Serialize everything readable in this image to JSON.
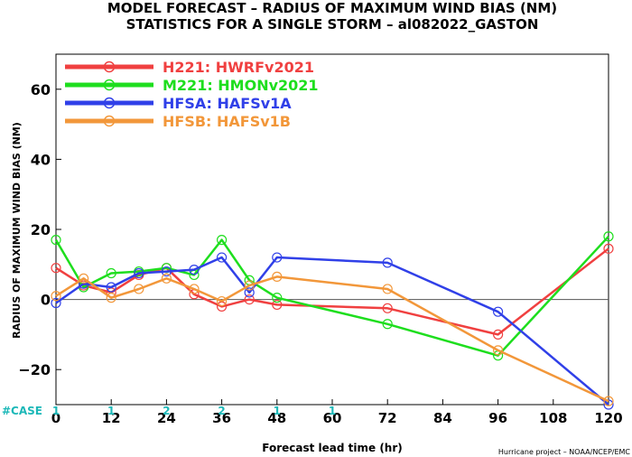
{
  "chart_data": {
    "type": "line",
    "title": "MODEL FORECAST – RADIUS OF MAXIMUM WIND BIAS (NM)",
    "subtitle": "STATISTICS FOR A SINGLE STORM – al082022_GASTON",
    "xlabel": "Forecast lead time (hr)",
    "ylabel": "RADIUS OF MAXIMUM WIND BIAS (NM)",
    "xlim": [
      0,
      120
    ],
    "ylim": [
      -30,
      70
    ],
    "x_ticks": [
      0,
      12,
      24,
      36,
      48,
      60,
      72,
      84,
      96,
      108,
      120
    ],
    "y_ticks": [
      -20,
      0,
      20,
      40,
      60
    ],
    "legend_position": "top-left",
    "grid": false,
    "zero_line": true,
    "case_label": "#CASE",
    "cases": [
      {
        "x": 0,
        "n": "1"
      },
      {
        "x": 12,
        "n": "1"
      },
      {
        "x": 24,
        "n": "2"
      },
      {
        "x": 36,
        "n": "2"
      },
      {
        "x": 48,
        "n": "1"
      },
      {
        "x": 60,
        "n": "1"
      }
    ],
    "credit": "Hurricane project – NOAA/NCEP/EMC",
    "series": [
      {
        "name": "H221: HWRFv2021",
        "color": "#f04040",
        "x": [
          0,
          6,
          12,
          18,
          24,
          30,
          36,
          42,
          48,
          72,
          96,
          120
        ],
        "y": [
          9,
          4,
          2,
          7,
          9,
          1.5,
          -2,
          0,
          -1.5,
          -2.5,
          -10,
          14.5
        ]
      },
      {
        "name": "M221: HMONv2021",
        "color": "#1ede1e",
        "x": [
          0,
          6,
          12,
          18,
          24,
          30,
          36,
          42,
          48,
          72,
          96,
          120
        ],
        "y": [
          17,
          3.5,
          7.5,
          8,
          9,
          7,
          17,
          5.5,
          0.5,
          -7,
          -16,
          18
        ]
      },
      {
        "name": "HFSA: HAFSv1A",
        "color": "#3040e8",
        "x": [
          0,
          6,
          12,
          18,
          24,
          30,
          36,
          42,
          48,
          72,
          96,
          120
        ],
        "y": [
          -1,
          4.5,
          3.5,
          7.5,
          8,
          8.5,
          12,
          2,
          12,
          10.5,
          -3.5,
          -30
        ]
      },
      {
        "name": "HFSB: HAFSv1B",
        "color": "#f2973a",
        "x": [
          0,
          6,
          12,
          18,
          24,
          30,
          36,
          42,
          48,
          72,
          96,
          120
        ],
        "y": [
          1,
          6,
          0.5,
          3,
          6,
          3,
          -0.5,
          4,
          6.5,
          3,
          -14.5,
          -29
        ]
      }
    ]
  }
}
